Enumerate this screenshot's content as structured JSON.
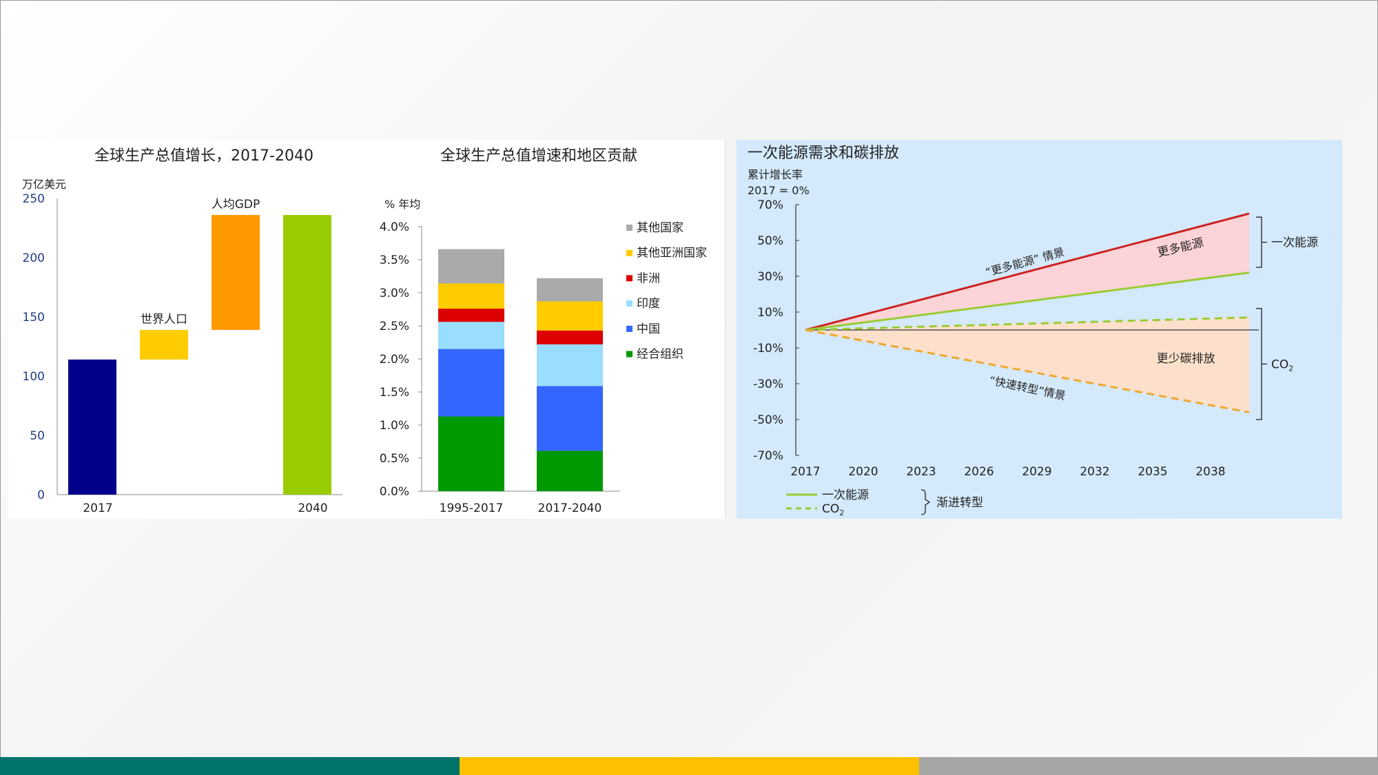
{
  "chart_data": [
    {
      "type": "bar",
      "title": "全球生产总值增长，2017-2040",
      "ylabel": "万亿美元",
      "ylim": [
        0,
        250
      ],
      "yticks": [
        "0",
        "50",
        "100",
        "150",
        "200",
        "250"
      ],
      "categories": [
        "2017",
        "世界人口",
        "人均GDP",
        "2040"
      ],
      "x_tick_labels": [
        "2017",
        "",
        "",
        "2040"
      ],
      "bars": [
        {
          "label": "2017",
          "base": 0,
          "value": 114,
          "color": "#00008b",
          "show_label": false
        },
        {
          "label": "世界人口",
          "base": 114,
          "value": 139,
          "color": "#ffcc00",
          "show_label": true
        },
        {
          "label": "人均GDP",
          "base": 139,
          "value": 236,
          "color": "#ff9900",
          "show_label": true
        },
        {
          "label": "2040",
          "base": 0,
          "value": 236,
          "color": "#99cc00",
          "show_label": false
        }
      ]
    },
    {
      "type": "bar",
      "stacked": true,
      "title": "全球生产总值增速和地区贡献",
      "ylabel": "% 年均",
      "ylim": [
        0,
        4.0
      ],
      "yticks": [
        "0.0%",
        "0.5%",
        "1.0%",
        "1.5%",
        "2.0%",
        "2.5%",
        "3.0%",
        "3.5%",
        "4.0%"
      ],
      "categories": [
        "1995-2017",
        "2017-2040"
      ],
      "legend_position": "right",
      "series": [
        {
          "name": "经合组织",
          "color": "#009900",
          "values": [
            1.13,
            0.61
          ]
        },
        {
          "name": "中国",
          "color": "#3366ff",
          "values": [
            1.02,
            0.98
          ]
        },
        {
          "name": "印度",
          "color": "#99ddff",
          "values": [
            0.41,
            0.63
          ]
        },
        {
          "name": "非洲",
          "color": "#dd0000",
          "values": [
            0.2,
            0.21
          ]
        },
        {
          "name": "其他亚洲国家",
          "color": "#ffcc00",
          "values": [
            0.38,
            0.44
          ]
        },
        {
          "name": "其他国家",
          "color": "#aaaaaa",
          "values": [
            0.52,
            0.35
          ]
        }
      ]
    },
    {
      "type": "line",
      "title": "一次能源需求和碳排放",
      "ylabel": "累计增长率",
      "ylabel2": "2017 = 0%",
      "ylim": [
        -70,
        70
      ],
      "yticks": [
        "70%",
        "50%",
        "30%",
        "10%",
        "-10%",
        "-30%",
        "-50%",
        "-70%"
      ],
      "x": [
        2017,
        2040
      ],
      "xticks": [
        "2017",
        "2020",
        "2023",
        "2026",
        "2029",
        "2032",
        "2035",
        "2038"
      ],
      "series": [
        {
          "key": "energy_more",
          "color": "#cc2222",
          "dash": false,
          "x": [
            2017,
            2040
          ],
          "y": [
            0,
            65
          ]
        },
        {
          "key": "energy_et",
          "color": "#99cc33",
          "dash": false,
          "x": [
            2017,
            2040
          ],
          "y": [
            0,
            32
          ]
        },
        {
          "key": "co2_et",
          "color": "#99cc33",
          "dash": true,
          "x": [
            2017,
            2040
          ],
          "y": [
            0,
            7
          ]
        },
        {
          "key": "co2_rapid",
          "color": "#f0a830",
          "dash": true,
          "x": [
            2017,
            2040
          ],
          "y": [
            0,
            -46
          ]
        }
      ],
      "annotations": {
        "more_energy_scenario": "“更多能源” 情景",
        "more_energy": "更多能源",
        "less_carbon": "更少碳排放",
        "rapid_transition": "“快速转型”情景",
        "bracket_energy": "一次能源",
        "bracket_co2": "CO",
        "co2_sub": "2"
      },
      "legend": {
        "line1": "一次能源",
        "line2": "CO",
        "line2_sub": "2",
        "group": "渐进转型"
      }
    }
  ],
  "footer": {
    "colors": [
      "#00736b",
      "#ffc000",
      "#a6a6a6"
    ]
  }
}
